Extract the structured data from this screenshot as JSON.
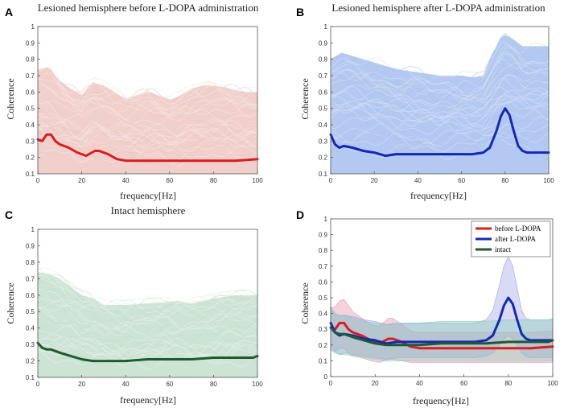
{
  "chart_data": [
    {
      "panel": "A",
      "type": "line",
      "title": "Lesioned hemisphere before L-DOPA administration",
      "xlabel": "frequency[Hz]",
      "ylabel": "Coherence",
      "xlim": [
        0,
        100
      ],
      "ylim": [
        0.1,
        1.0
      ],
      "xticks": [
        0,
        20,
        40,
        60,
        80,
        100
      ],
      "yticks": [
        0.1,
        0.2,
        0.3,
        0.4,
        0.5,
        0.6,
        0.7,
        0.8,
        0.9,
        1
      ],
      "band_color": "#f1cfcb",
      "band_upper": [
        [
          0,
          0.76
        ],
        [
          5,
          0.77
        ],
        [
          10,
          0.69
        ],
        [
          15,
          0.64
        ],
        [
          20,
          0.6
        ],
        [
          25,
          0.68
        ],
        [
          30,
          0.66
        ],
        [
          35,
          0.62
        ],
        [
          40,
          0.58
        ],
        [
          45,
          0.6
        ],
        [
          50,
          0.62
        ],
        [
          55,
          0.6
        ],
        [
          60,
          0.57
        ],
        [
          65,
          0.6
        ],
        [
          70,
          0.64
        ],
        [
          75,
          0.66
        ],
        [
          80,
          0.66
        ],
        [
          85,
          0.65
        ],
        [
          90,
          0.63
        ],
        [
          95,
          0.62
        ],
        [
          100,
          0.62
        ]
      ],
      "series": [
        {
          "name": "mean coherence",
          "color": "#dd1c1c",
          "x": [
            0,
            2,
            4,
            6,
            8,
            10,
            14,
            18,
            22,
            26,
            28,
            32,
            36,
            40,
            50,
            60,
            70,
            80,
            90,
            100
          ],
          "values": [
            0.31,
            0.3,
            0.34,
            0.34,
            0.3,
            0.28,
            0.26,
            0.23,
            0.21,
            0.24,
            0.24,
            0.22,
            0.19,
            0.18,
            0.18,
            0.18,
            0.18,
            0.18,
            0.18,
            0.19
          ]
        }
      ]
    },
    {
      "panel": "B",
      "type": "line",
      "title": "Lesioned hemisphere after L-DOPA administration",
      "xlabel": "frequency[Hz]",
      "ylabel": "Coherence",
      "xlim": [
        0,
        100
      ],
      "ylim": [
        0.1,
        1.0
      ],
      "xticks": [
        0,
        20,
        40,
        60,
        80,
        100
      ],
      "yticks": [
        0.1,
        0.2,
        0.3,
        0.4,
        0.5,
        0.6,
        0.7,
        0.8,
        0.9,
        1
      ],
      "band_color": "#b3c9f1",
      "band_upper": [
        [
          0,
          0.82
        ],
        [
          5,
          0.86
        ],
        [
          10,
          0.84
        ],
        [
          20,
          0.8
        ],
        [
          30,
          0.76
        ],
        [
          40,
          0.74
        ],
        [
          50,
          0.72
        ],
        [
          60,
          0.72
        ],
        [
          65,
          0.71
        ],
        [
          70,
          0.72
        ],
        [
          74,
          0.85
        ],
        [
          78,
          0.95
        ],
        [
          80,
          0.97
        ],
        [
          84,
          0.94
        ],
        [
          88,
          0.9
        ],
        [
          95,
          0.9
        ],
        [
          100,
          0.9
        ]
      ],
      "series": [
        {
          "name": "mean coherence",
          "color": "#1428b8",
          "x": [
            0,
            2,
            4,
            6,
            10,
            15,
            20,
            25,
            30,
            40,
            50,
            60,
            65,
            70,
            73,
            76,
            78,
            80,
            82,
            84,
            86,
            88,
            90,
            95,
            100
          ],
          "values": [
            0.34,
            0.28,
            0.26,
            0.27,
            0.26,
            0.24,
            0.23,
            0.21,
            0.22,
            0.22,
            0.22,
            0.22,
            0.22,
            0.23,
            0.26,
            0.36,
            0.45,
            0.5,
            0.46,
            0.36,
            0.27,
            0.24,
            0.23,
            0.23,
            0.23
          ]
        }
      ]
    },
    {
      "panel": "C",
      "type": "line",
      "title": "Intact hemisphere",
      "xlabel": "frequency[Hz]",
      "ylabel": "Coherence",
      "xlim": [
        0,
        100
      ],
      "ylim": [
        0.1,
        1.0
      ],
      "xticks": [
        0,
        20,
        40,
        60,
        80,
        100
      ],
      "yticks": [
        0.1,
        0.2,
        0.3,
        0.4,
        0.5,
        0.6,
        0.7,
        0.8,
        0.9,
        1
      ],
      "band_color": "#cde4d4",
      "band_upper": [
        [
          0,
          0.76
        ],
        [
          5,
          0.75
        ],
        [
          10,
          0.72
        ],
        [
          15,
          0.67
        ],
        [
          20,
          0.62
        ],
        [
          25,
          0.6
        ],
        [
          30,
          0.56
        ],
        [
          40,
          0.56
        ],
        [
          50,
          0.57
        ],
        [
          60,
          0.58
        ],
        [
          70,
          0.57
        ],
        [
          80,
          0.6
        ],
        [
          90,
          0.62
        ],
        [
          100,
          0.62
        ]
      ],
      "series": [
        {
          "name": "mean coherence",
          "color": "#1e5a32",
          "x": [
            0,
            2,
            4,
            6,
            10,
            15,
            20,
            25,
            30,
            40,
            50,
            60,
            70,
            80,
            90,
            98,
            100
          ],
          "values": [
            0.31,
            0.28,
            0.27,
            0.27,
            0.25,
            0.23,
            0.21,
            0.2,
            0.2,
            0.2,
            0.21,
            0.21,
            0.21,
            0.22,
            0.22,
            0.22,
            0.23
          ]
        }
      ]
    },
    {
      "panel": "D",
      "type": "line",
      "title": "",
      "xlabel": "frequency[Hz]",
      "ylabel": "Coherence",
      "xlim": [
        0,
        100
      ],
      "ylim": [
        0,
        1
      ],
      "xticks": [
        0,
        20,
        40,
        60,
        80,
        100
      ],
      "yticks": [
        0,
        0.1,
        0.2,
        0.3,
        0.4,
        0.5,
        0.6,
        0.7,
        0.8,
        0.9,
        1
      ],
      "legend_position": "top-right",
      "series": [
        {
          "name": "before L-DOPA",
          "color": "#dd1c1c",
          "band_color": "#e88aa8",
          "x": [
            0,
            2,
            4,
            6,
            8,
            10,
            14,
            18,
            22,
            26,
            28,
            32,
            36,
            40,
            50,
            60,
            70,
            80,
            90,
            100
          ],
          "values": [
            0.31,
            0.3,
            0.34,
            0.34,
            0.3,
            0.28,
            0.26,
            0.23,
            0.21,
            0.24,
            0.24,
            0.22,
            0.19,
            0.18,
            0.18,
            0.18,
            0.18,
            0.18,
            0.18,
            0.19
          ],
          "band_lower": [
            0.17,
            0.16,
            0.18,
            0.18,
            0.15,
            0.13,
            0.12,
            0.1,
            0.09,
            0.11,
            0.11,
            0.1,
            0.09,
            0.09,
            0.09,
            0.09,
            0.09,
            0.09,
            0.09,
            0.09
          ],
          "band_upper": [
            0.44,
            0.44,
            0.48,
            0.49,
            0.45,
            0.41,
            0.37,
            0.33,
            0.32,
            0.37,
            0.37,
            0.33,
            0.29,
            0.28,
            0.28,
            0.28,
            0.28,
            0.28,
            0.28,
            0.29
          ]
        },
        {
          "name": "after L-DOPA",
          "color": "#1428b8",
          "band_color": "#9a9ee6",
          "x": [
            0,
            2,
            4,
            6,
            10,
            15,
            20,
            25,
            30,
            40,
            50,
            60,
            65,
            70,
            73,
            76,
            78,
            80,
            82,
            84,
            86,
            88,
            90,
            95,
            100
          ],
          "values": [
            0.34,
            0.28,
            0.26,
            0.27,
            0.26,
            0.24,
            0.23,
            0.21,
            0.22,
            0.22,
            0.22,
            0.22,
            0.22,
            0.23,
            0.26,
            0.36,
            0.45,
            0.5,
            0.46,
            0.36,
            0.27,
            0.24,
            0.23,
            0.23,
            0.23
          ],
          "band_lower": [
            0.2,
            0.16,
            0.14,
            0.15,
            0.14,
            0.13,
            0.12,
            0.11,
            0.12,
            0.12,
            0.12,
            0.12,
            0.12,
            0.13,
            0.15,
            0.2,
            0.24,
            0.26,
            0.24,
            0.2,
            0.15,
            0.13,
            0.12,
            0.12,
            0.12
          ],
          "band_upper": [
            0.44,
            0.4,
            0.38,
            0.39,
            0.38,
            0.36,
            0.35,
            0.33,
            0.34,
            0.34,
            0.34,
            0.34,
            0.34,
            0.36,
            0.42,
            0.58,
            0.7,
            0.76,
            0.7,
            0.56,
            0.42,
            0.37,
            0.36,
            0.36,
            0.36
          ]
        },
        {
          "name": "intact",
          "color": "#1e5a32",
          "band_color": "#86cfb4",
          "x": [
            0,
            2,
            4,
            6,
            10,
            15,
            20,
            25,
            30,
            40,
            50,
            60,
            70,
            80,
            90,
            98,
            100
          ],
          "values": [
            0.31,
            0.28,
            0.27,
            0.27,
            0.25,
            0.23,
            0.21,
            0.2,
            0.2,
            0.2,
            0.21,
            0.21,
            0.21,
            0.22,
            0.22,
            0.22,
            0.23
          ],
          "band_lower": [
            0.17,
            0.15,
            0.14,
            0.14,
            0.13,
            0.12,
            0.11,
            0.1,
            0.1,
            0.1,
            0.1,
            0.1,
            0.1,
            0.1,
            0.1,
            0.1,
            0.1
          ],
          "band_upper": [
            0.42,
            0.4,
            0.39,
            0.39,
            0.37,
            0.35,
            0.34,
            0.33,
            0.33,
            0.34,
            0.35,
            0.35,
            0.35,
            0.36,
            0.36,
            0.36,
            0.37
          ]
        }
      ]
    }
  ]
}
